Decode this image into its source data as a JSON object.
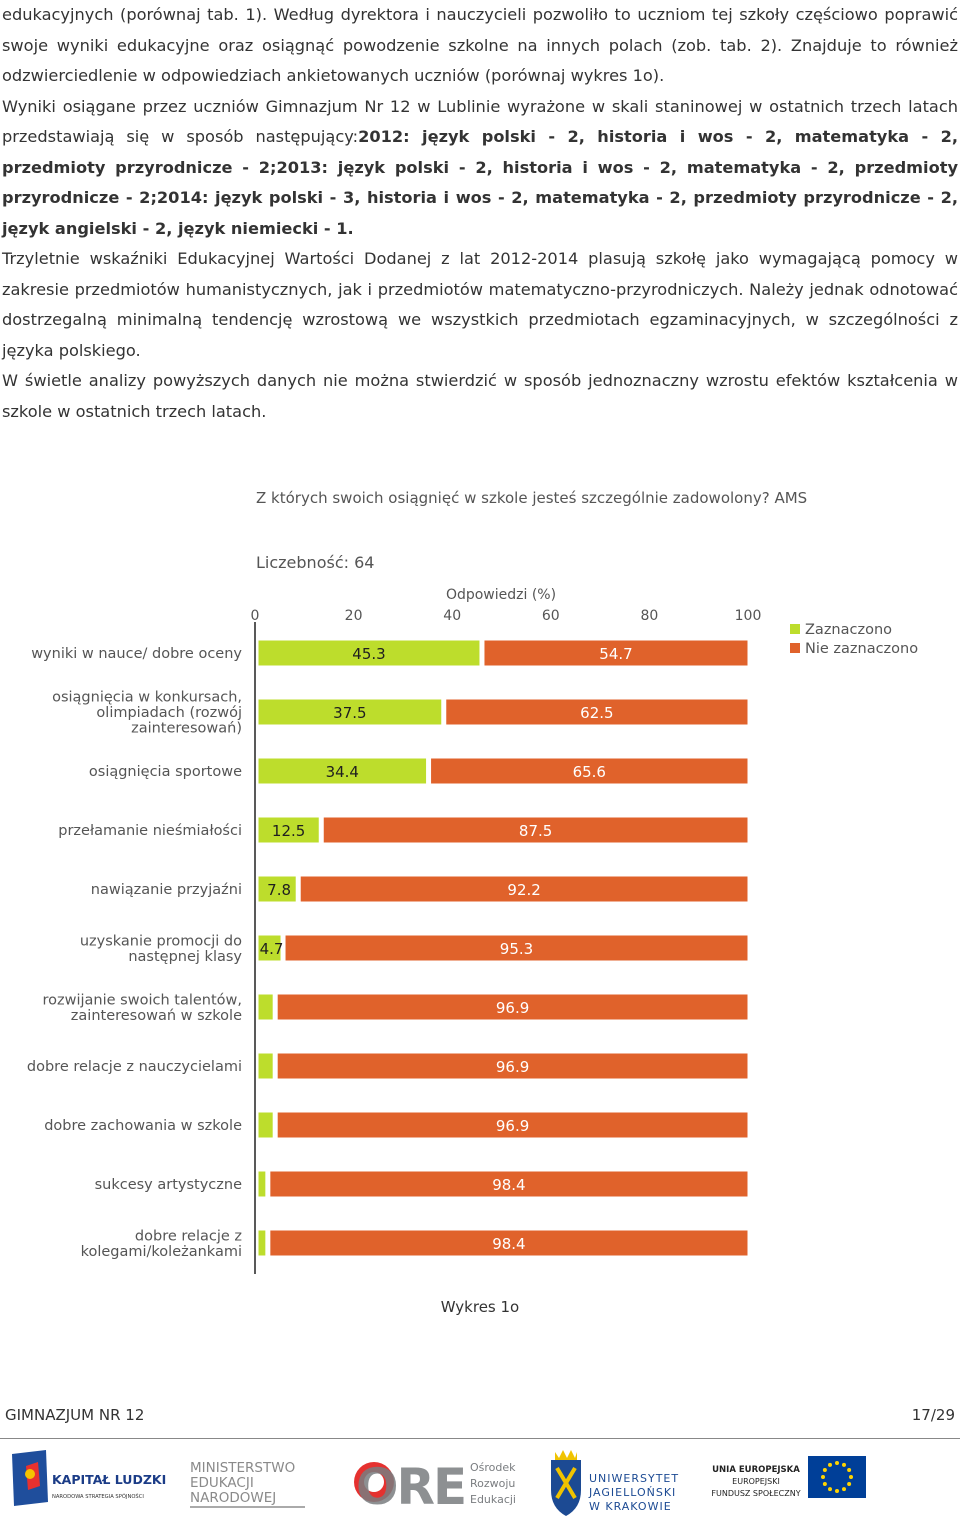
{
  "body": {
    "p1": "edukacyjnych (porównaj tab. 1). Według dyrektora i nauczycieli pozwoliło to uczniom tej szkoły częściowo poprawić swoje wyniki edukacyjne oraz osiągnąć powodzenie szkolne na innych polach (zob. tab. 2). Znajduje to również odzwierciedlenie w odpowiedziach ankietowanych uczniów (porównaj wykres 1o).",
    "p2_intro": "Wyniki osiągane przez uczniów Gimnazjum Nr 12 w Lublinie wyrażone w skali staninowej w ostatnich trzech latach przedstawiają się w sposób następujący:",
    "p2_bold": "2012: język polski - 2, historia i wos - 2, matematyka - 2, przedmioty przyrodnicze - 2;2013: język polski - 2, historia i wos - 2, matematyka - 2, przedmioty przyrodnicze - 2;2014: język polski - 3, historia i wos - 2, matematyka - 2, przedmioty przyrodnicze - 2, język angielski - 2, język niemiecki - 1.",
    "p3": "Trzyletnie wskaźniki Edukacyjnej Wartości Dodanej z lat 2012-2014 plasują szkołę jako wymagającą pomocy w zakresie przedmiotów humanistycznych, jak i przedmiotów matematyczno-przyrodniczych. Należy jednak odnotować dostrzegalną minimalną tendencję wzrostową we wszystkich przedmiotach egzaminacyjnych, w szczególności z języka polskiego.",
    "p4": "W świetle analizy powyższych danych nie można stwierdzić w sposób jednoznaczny wzrostu efektów kształcenia w szkole w ostatnich trzech latach."
  },
  "chart_data": {
    "type": "bar",
    "orientation": "horizontal",
    "stacked": true,
    "title": "Z których swoich osiągnięć w szkole jesteś szczególnie zadowolony? AMS",
    "subtitle": "Liczebność: 64",
    "xlabel": "Odpowiedzi (%)",
    "xlim": [
      0,
      100
    ],
    "xticks": [
      "0",
      "20",
      "40",
      "60",
      "80",
      "100"
    ],
    "legend_position": "top-right",
    "categories": [
      [
        "wyniki w nauce/ dobre oceny"
      ],
      [
        "osiągnięcia w konkursach,",
        "olimpiadach (rozwój",
        "zainteresowań)"
      ],
      [
        "osiągnięcia sportowe"
      ],
      [
        "przełamanie nieśmiałości"
      ],
      [
        "nawiązanie przyjaźni"
      ],
      [
        "uzyskanie promocji do",
        "następnej klasy"
      ],
      [
        "rozwijanie swoich talentów,",
        "zainteresowań w szkole"
      ],
      [
        "dobre relacje z nauczycielami"
      ],
      [
        "dobre zachowania w szkole"
      ],
      [
        "sukcesy artystyczne"
      ],
      [
        "dobre relacje z",
        "kolegami/koleżankami"
      ]
    ],
    "series": [
      {
        "name": "Zaznaczono",
        "color": "#bddd2c",
        "values": [
          45.3,
          37.5,
          34.4,
          12.5,
          7.8,
          4.7,
          3.1,
          3.1,
          3.1,
          1.6,
          1.6
        ],
        "labels": [
          "45.3",
          "37.5",
          "34.4",
          "12.5",
          "7.8",
          "4.7",
          "",
          "",
          "",
          "",
          ""
        ]
      },
      {
        "name": "Nie zaznaczono",
        "color": "#e0622b",
        "values": [
          54.7,
          62.5,
          65.6,
          87.5,
          92.2,
          95.3,
          96.9,
          96.9,
          96.9,
          98.4,
          98.4
        ],
        "labels": [
          "54.7",
          "62.5",
          "65.6",
          "87.5",
          "92.2",
          "95.3",
          "96.9",
          "96.9",
          "96.9",
          "98.4",
          "98.4"
        ]
      }
    ]
  },
  "caption": "Wykres 1o",
  "footer": {
    "school": "GIMNAZJUM NR 12",
    "page": "17/29"
  },
  "logos": {
    "kapital_1": "KAPITAŁ LUDZKI",
    "kapital_2": "NARODOWA STRATEGIA SPÓJNOŚCI",
    "men_1": "MINISTERSTWO",
    "men_2": "EDUKACJI",
    "men_3": "NARODOWEJ",
    "ore_mark": "ORE",
    "ore_1": "Ośrodek",
    "ore_2": "Rozwoju",
    "ore_3": "Edukacji",
    "uj_1": "UNIWERSYTET",
    "uj_2": "JAGIELLOŃSKI",
    "uj_3": "W KRAKOWIE",
    "ue_1": "UNIA EUROPEJSKA",
    "ue_2": "EUROPEJSKI",
    "ue_3": "FUNDUSZ SPOŁECZNY"
  }
}
